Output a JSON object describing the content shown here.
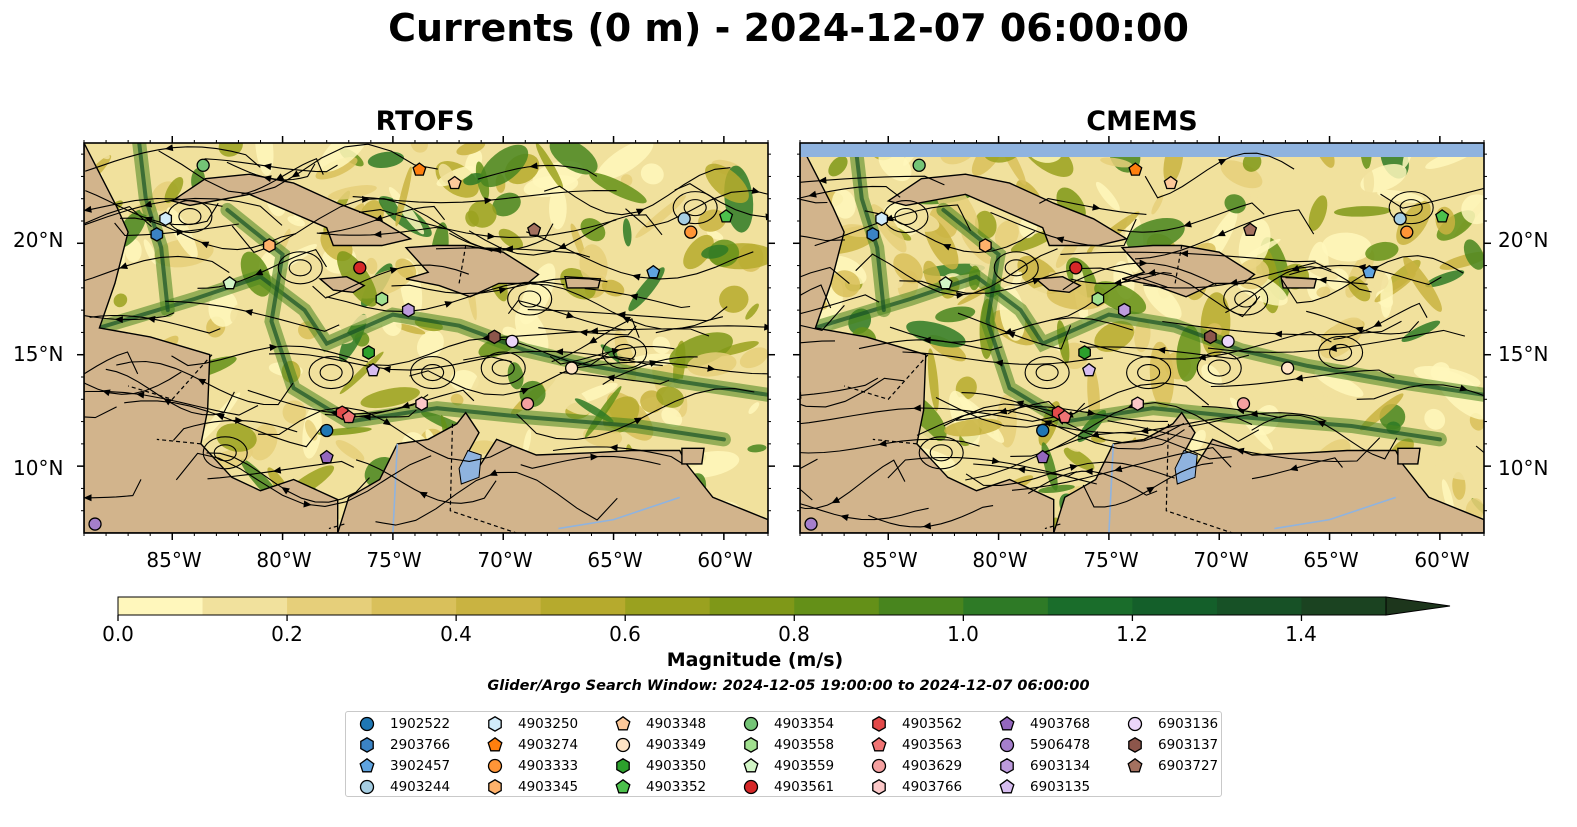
{
  "figure": {
    "title": "Currents (0 m) - 2024-12-07 06:00:00",
    "panels": [
      {
        "name": "RTOFS"
      },
      {
        "name": "CMEMS"
      }
    ],
    "lat_ticks": [
      "20°N",
      "15°N",
      "10°N"
    ],
    "lon_ticks": [
      "85°W",
      "80°W",
      "75°W",
      "70°W",
      "65°W",
      "60°W"
    ],
    "extent": {
      "lon": [
        -89,
        -58
      ],
      "lat": [
        7,
        24.5
      ]
    }
  },
  "colorbar": {
    "label": "Magnitude (m/s)",
    "ticks": [
      "0.0",
      "0.2",
      "0.4",
      "0.6",
      "0.8",
      "1.0",
      "1.2",
      "1.4"
    ],
    "range": [
      0,
      1.5
    ],
    "extend": "max",
    "colors": [
      "#fff7bc",
      "#f1e19d",
      "#e6cf7a",
      "#d9c05b",
      "#c9b341",
      "#b6aa2d",
      "#9aa11f",
      "#7f9818",
      "#649018",
      "#48851e",
      "#2e7a26",
      "#1a6d2b",
      "#145f2a",
      "#175126",
      "#1b4321",
      "#1d361c"
    ]
  },
  "search_window": "Glider/Argo Search Window: 2024-12-05 19:00:00 to 2024-12-07 06:00:00",
  "colors": {
    "land": "#d2b48c",
    "ocean_fill": "#8fb3df",
    "streamline": "#000000"
  },
  "legend": {
    "items": [
      {
        "id": "1902522",
        "color": "#1f77b4",
        "marker": "circle"
      },
      {
        "id": "2903766",
        "color": "#3b83c5",
        "marker": "hexagon"
      },
      {
        "id": "3902457",
        "color": "#5fa3df",
        "marker": "pentagon"
      },
      {
        "id": "4903244",
        "color": "#a6cee3",
        "marker": "circle"
      },
      {
        "id": "4903250",
        "color": "#d1ecfb",
        "marker": "hexagon"
      },
      {
        "id": "4903274",
        "color": "#ff7f0e",
        "marker": "pentagon"
      },
      {
        "id": "4903333",
        "color": "#ff9537",
        "marker": "circle"
      },
      {
        "id": "4903345",
        "color": "#ffb26b",
        "marker": "hexagon"
      },
      {
        "id": "4903348",
        "color": "#fdc99a",
        "marker": "pentagon"
      },
      {
        "id": "4903349",
        "color": "#ffe4c4",
        "marker": "circle"
      },
      {
        "id": "4903350",
        "color": "#2ca02c",
        "marker": "hexagon"
      },
      {
        "id": "4903352",
        "color": "#4cc14c",
        "marker": "pentagon"
      },
      {
        "id": "4903354",
        "color": "#74c476",
        "marker": "circle"
      },
      {
        "id": "4903558",
        "color": "#a1e08f",
        "marker": "hexagon"
      },
      {
        "id": "4903559",
        "color": "#d2f5c6",
        "marker": "pentagon"
      },
      {
        "id": "4903561",
        "color": "#d62728",
        "marker": "circle"
      },
      {
        "id": "4903562",
        "color": "#e34a4a",
        "marker": "hexagon"
      },
      {
        "id": "4903563",
        "color": "#f07474",
        "marker": "pentagon"
      },
      {
        "id": "4903629",
        "color": "#f4a0a0",
        "marker": "circle"
      },
      {
        "id": "4903766",
        "color": "#fcc8c8",
        "marker": "hexagon"
      },
      {
        "id": "4903768",
        "color": "#9467bd",
        "marker": "pentagon"
      },
      {
        "id": "5906478",
        "color": "#a57fcc",
        "marker": "circle"
      },
      {
        "id": "6903134",
        "color": "#bd9bdd",
        "marker": "hexagon"
      },
      {
        "id": "6903135",
        "color": "#d7bdf0",
        "marker": "pentagon"
      },
      {
        "id": "6903136",
        "color": "#ecd6fa",
        "marker": "circle"
      },
      {
        "id": "6903137",
        "color": "#8c564b",
        "marker": "hexagon"
      },
      {
        "id": "6903727",
        "color": "#a4715f",
        "marker": "pentagon"
      }
    ]
  },
  "floats": [
    {
      "id": "1902522",
      "lon": -78.0,
      "lat": 11.6
    },
    {
      "id": "2903766",
      "lon": -85.7,
      "lat": 20.4
    },
    {
      "id": "3902457",
      "lon": -63.2,
      "lat": 18.7
    },
    {
      "id": "4903244",
      "lon": -61.8,
      "lat": 21.1
    },
    {
      "id": "4903250",
      "lon": -85.3,
      "lat": 21.1
    },
    {
      "id": "4903274",
      "lon": -73.8,
      "lat": 23.3
    },
    {
      "id": "4903333",
      "lon": -61.5,
      "lat": 20.5
    },
    {
      "id": "4903345",
      "lon": -80.6,
      "lat": 19.9
    },
    {
      "id": "4903348",
      "lon": -72.2,
      "lat": 22.7
    },
    {
      "id": "4903349",
      "lon": -66.9,
      "lat": 14.4
    },
    {
      "id": "4903350",
      "lon": -76.1,
      "lat": 15.1
    },
    {
      "id": "4903352",
      "lon": -59.9,
      "lat": 21.2
    },
    {
      "id": "4903354",
      "lon": -83.6,
      "lat": 23.5
    },
    {
      "id": "4903558",
      "lon": -75.5,
      "lat": 17.5
    },
    {
      "id": "4903559",
      "lon": -82.4,
      "lat": 18.2
    },
    {
      "id": "4903561",
      "lon": -76.5,
      "lat": 18.9
    },
    {
      "id": "4903562",
      "lon": -77.3,
      "lat": 12.4
    },
    {
      "id": "4903563",
      "lon": -77.0,
      "lat": 12.2
    },
    {
      "id": "4903629",
      "lon": -68.9,
      "lat": 12.8
    },
    {
      "id": "4903766",
      "lon": -73.7,
      "lat": 12.8
    },
    {
      "id": "4903768",
      "lon": -78.0,
      "lat": 10.4
    },
    {
      "id": "5906478",
      "lon": -88.5,
      "lat": 7.4
    },
    {
      "id": "6903134",
      "lon": -74.3,
      "lat": 17.0
    },
    {
      "id": "6903135",
      "lon": -75.9,
      "lat": 14.3
    },
    {
      "id": "6903136",
      "lon": -69.6,
      "lat": 15.6
    },
    {
      "id": "6903137",
      "lon": -70.4,
      "lat": 15.8
    },
    {
      "id": "6903727",
      "lon": -68.6,
      "lat": 20.6
    }
  ]
}
